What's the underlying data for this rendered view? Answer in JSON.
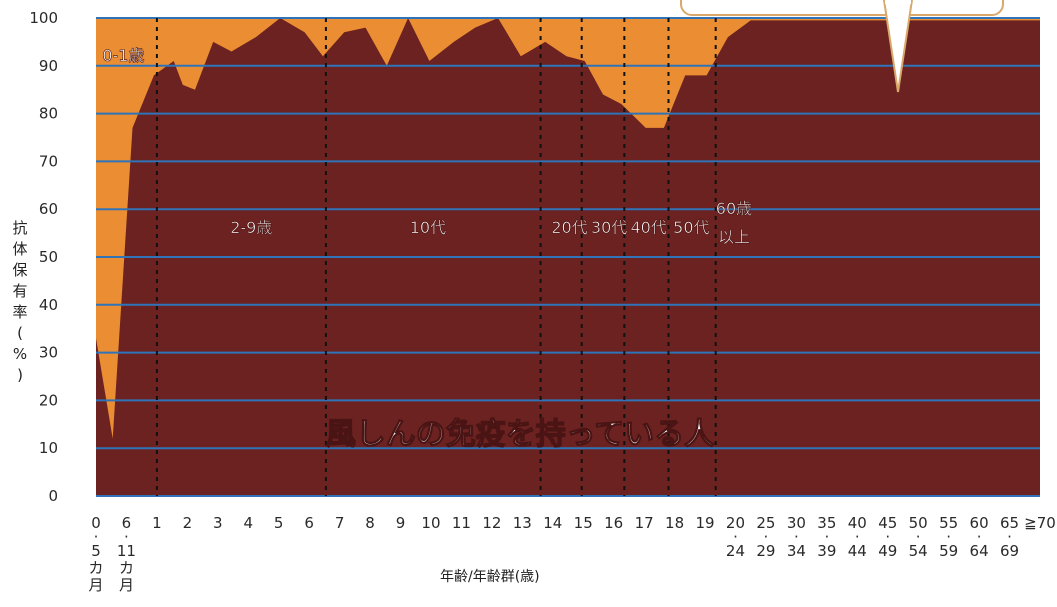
{
  "chart_data": {
    "type": "area",
    "title": "",
    "xlabel": "年齢/年齢群(歳)",
    "ylabel": "抗体保有率(%)",
    "ylim": [
      0,
      100
    ],
    "yticks": [
      0,
      10,
      20,
      30,
      40,
      50,
      60,
      70,
      80,
      90,
      100
    ],
    "grid": true,
    "x_tick_labels": [
      {
        "top": "0",
        "sub": [
          "-",
          "5",
          "カ",
          "月"
        ]
      },
      {
        "top": "6",
        "sub": [
          "-",
          "11",
          "カ",
          "月"
        ]
      },
      {
        "top": "1"
      },
      {
        "top": "2"
      },
      {
        "top": "3"
      },
      {
        "top": "4"
      },
      {
        "top": "5"
      },
      {
        "top": "6"
      },
      {
        "top": "7"
      },
      {
        "top": "8"
      },
      {
        "top": "9"
      },
      {
        "top": "10"
      },
      {
        "top": "11"
      },
      {
        "top": "12"
      },
      {
        "top": "13"
      },
      {
        "top": "14"
      },
      {
        "top": "15"
      },
      {
        "top": "16"
      },
      {
        "top": "17"
      },
      {
        "top": "18"
      },
      {
        "top": "19"
      },
      {
        "top": "20",
        "sub": [
          "-",
          "24"
        ]
      },
      {
        "top": "25",
        "sub": [
          "-",
          "29"
        ]
      },
      {
        "top": "30",
        "sub": [
          "-",
          "34"
        ]
      },
      {
        "top": "35",
        "sub": [
          "-",
          "39"
        ]
      },
      {
        "top": "40",
        "sub": [
          "-",
          "44"
        ]
      },
      {
        "top": "45",
        "sub": [
          "-",
          "49"
        ]
      },
      {
        "top": "50",
        "sub": [
          "-",
          "54"
        ]
      },
      {
        "top": "55",
        "sub": [
          "-",
          "59"
        ]
      },
      {
        "top": "60",
        "sub": [
          "-",
          "64"
        ]
      },
      {
        "top": "65",
        "sub": [
          "-",
          "69"
        ]
      },
      {
        "top": "≧70"
      }
    ],
    "series": [
      {
        "points": [
          {
            "x": 0,
            "y": 33
          },
          {
            "x": 0.55,
            "y": 12
          },
          {
            "x": 1.2,
            "y": 77
          },
          {
            "x": 1.9,
            "y": 88
          },
          {
            "x": 2.55,
            "y": 91
          },
          {
            "x": 2.85,
            "y": 86
          },
          {
            "x": 3.25,
            "y": 85
          },
          {
            "x": 3.85,
            "y": 95
          },
          {
            "x": 4.45,
            "y": 93
          },
          {
            "x": 5.25,
            "y": 96
          },
          {
            "x": 6.05,
            "y": 100
          },
          {
            "x": 6.85,
            "y": 97
          },
          {
            "x": 7.45,
            "y": 92
          },
          {
            "x": 8.15,
            "y": 97
          },
          {
            "x": 8.85,
            "y": 98
          },
          {
            "x": 9.55,
            "y": 90
          },
          {
            "x": 10.25,
            "y": 100
          },
          {
            "x": 10.95,
            "y": 91
          },
          {
            "x": 11.75,
            "y": 95
          },
          {
            "x": 12.45,
            "y": 98
          },
          {
            "x": 13.2,
            "y": 100
          },
          {
            "x": 13.95,
            "y": 92
          },
          {
            "x": 14.75,
            "y": 95
          },
          {
            "x": 15.45,
            "y": 92
          },
          {
            "x": 16.05,
            "y": 91
          },
          {
            "x": 16.65,
            "y": 84
          },
          {
            "x": 17.25,
            "y": 82
          },
          {
            "x": 18.05,
            "y": 77
          },
          {
            "x": 18.65,
            "y": 77
          },
          {
            "x": 19.35,
            "y": 88
          },
          {
            "x": 20.05,
            "y": 88
          },
          {
            "x": 20.75,
            "y": 96
          },
          {
            "x": 21.5,
            "y": 99.5
          }
        ],
        "fill": "#6b2220"
      }
    ],
    "background_fill": "#eb8d32",
    "grid_color": "#2f74b8",
    "group_labels": [
      {
        "text": "0-1歳",
        "x": 0.9,
        "y": 91
      },
      {
        "text": "2-9歳",
        "x": 5.1,
        "y": 55
      },
      {
        "text": "10代",
        "x": 10.9,
        "y": 55
      },
      {
        "text": "20代",
        "x": 15.55,
        "y": 55
      },
      {
        "text": "30代",
        "x": 16.85,
        "y": 55
      },
      {
        "text": "40代",
        "x": 18.15,
        "y": 55
      },
      {
        "text": "50代",
        "x": 19.55,
        "y": 55
      },
      {
        "text": "60歳",
        "x": 20.95,
        "y": 59
      },
      {
        "text": "以上",
        "x": 20.95,
        "y": 53
      }
    ],
    "dividers": [
      2.0,
      7.55,
      14.6,
      15.95,
      17.35,
      18.8,
      20.35
    ],
    "annotation": "風しんの免疫を持っている人"
  }
}
